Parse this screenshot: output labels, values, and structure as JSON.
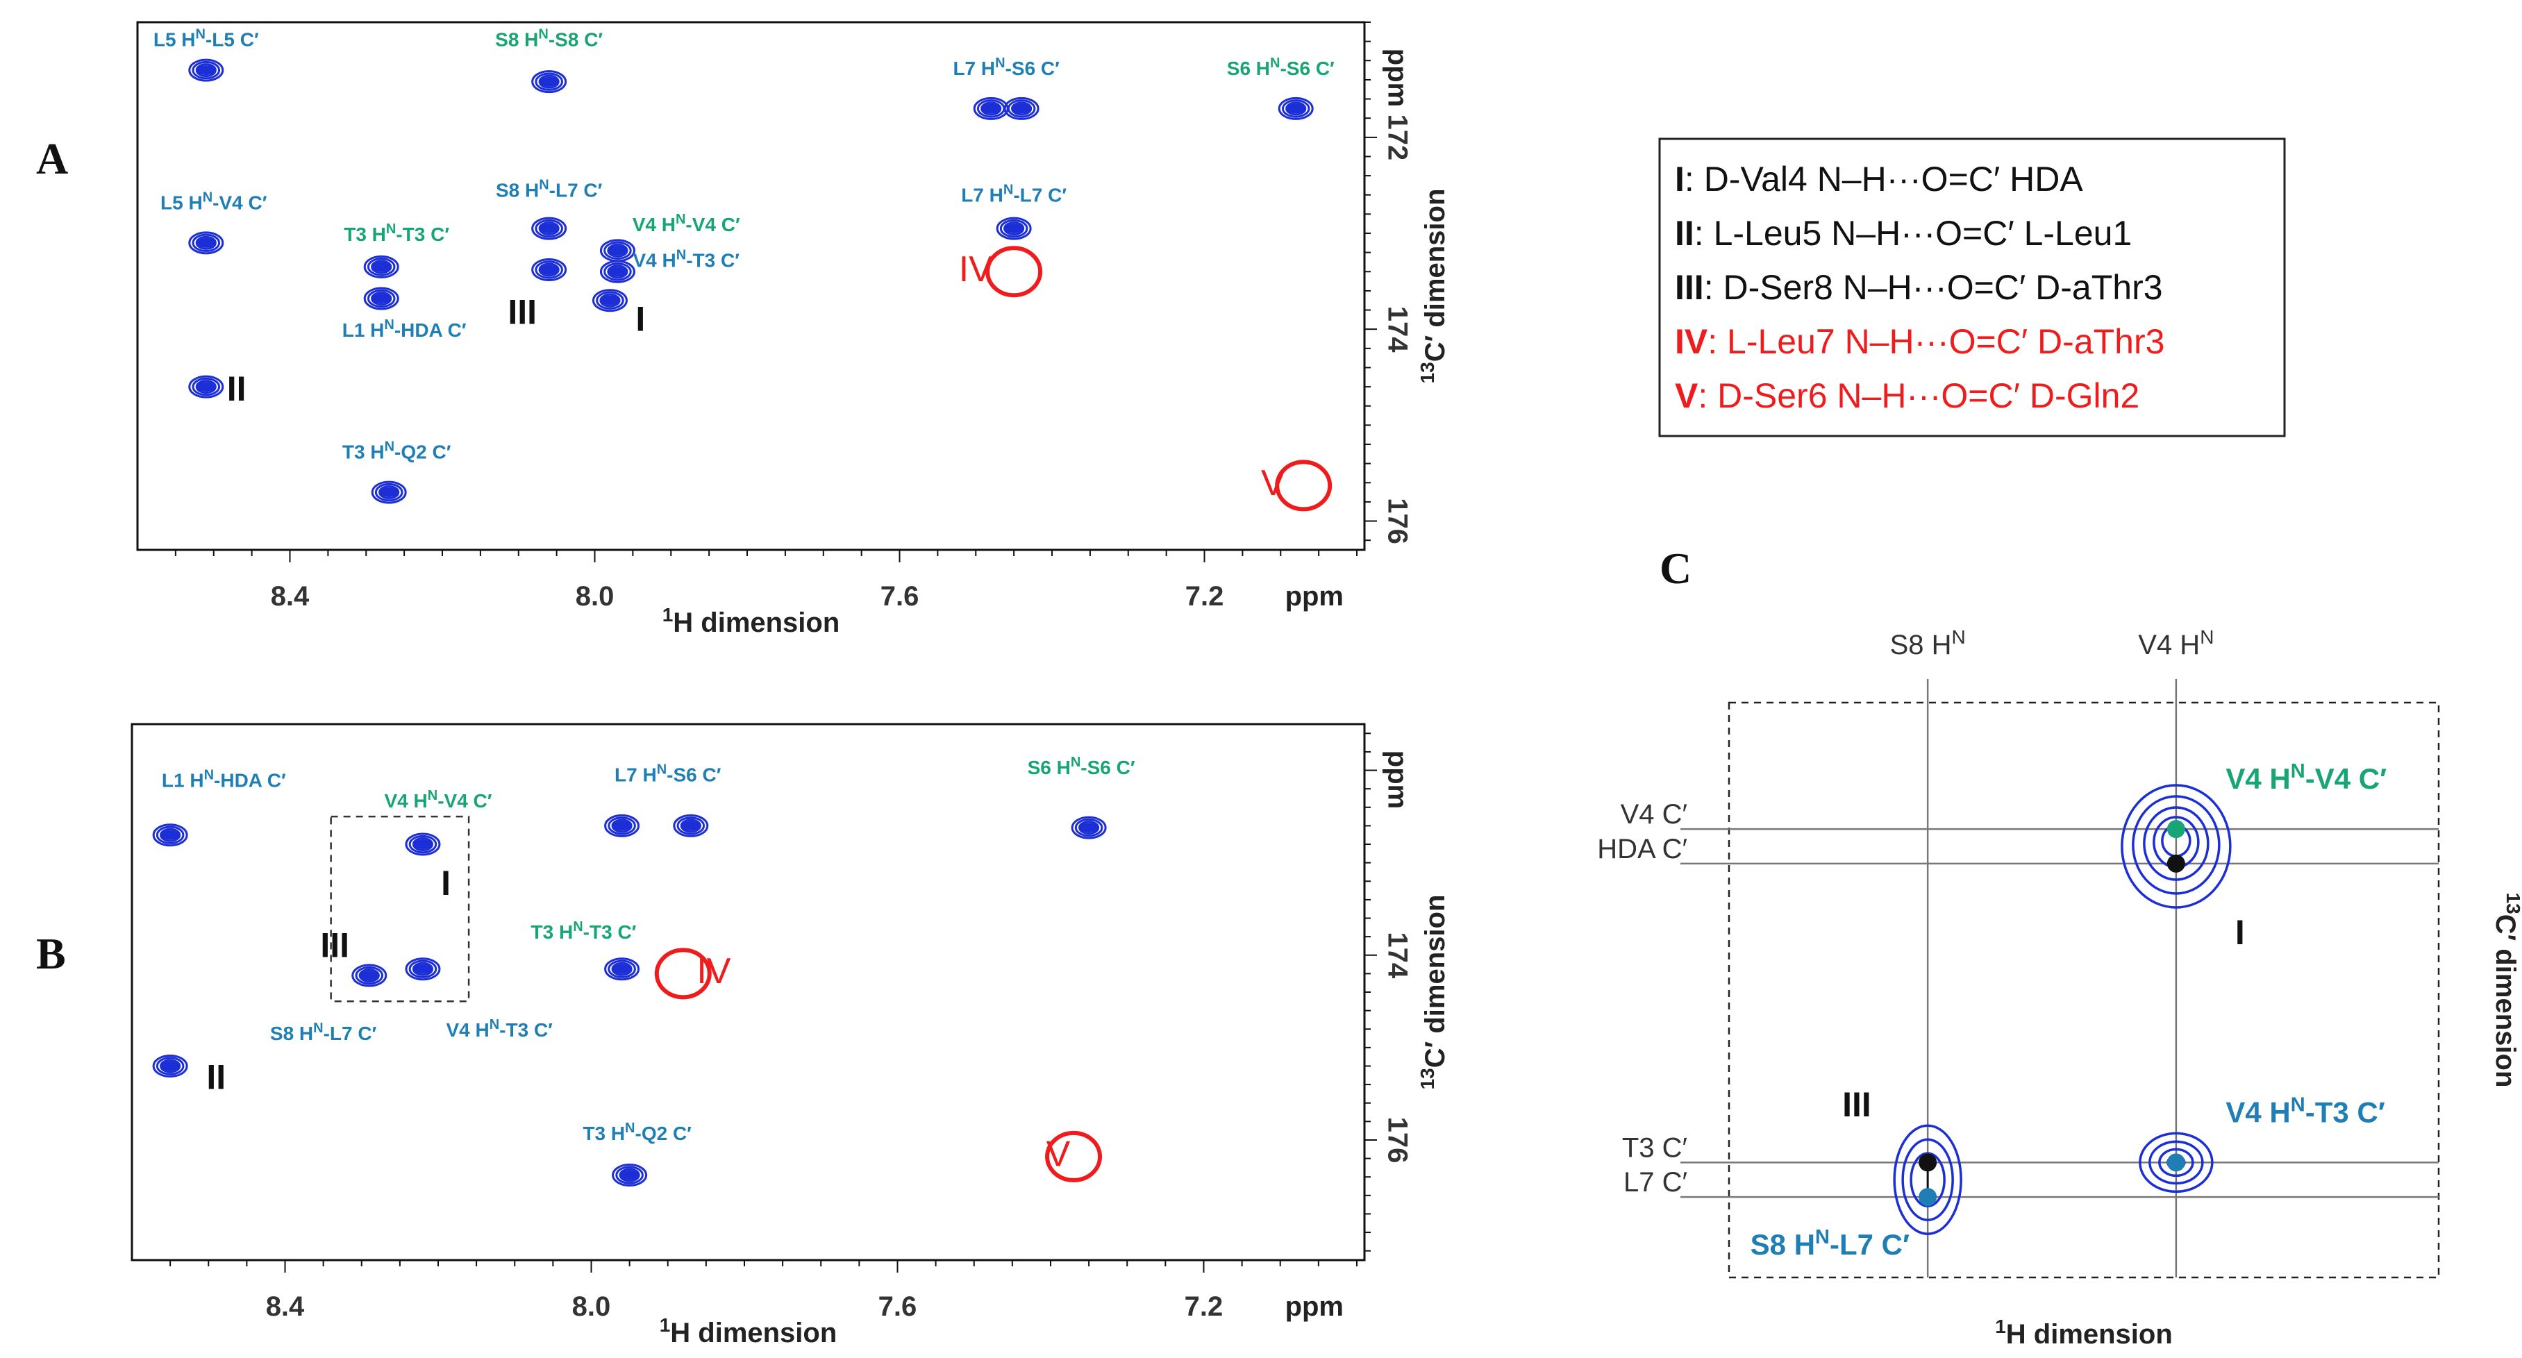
{
  "colors": {
    "blue": "#1c2fd6",
    "teal": "#1f7fb4",
    "green": "#17a673",
    "red": "#ee1c1c",
    "black": "#111111",
    "grid": "#777777"
  },
  "panel_labels": {
    "a": "A",
    "b": "B",
    "c": "C"
  },
  "chart_data": [
    {
      "id": "A",
      "type": "scatter",
      "xlabel_prefix": "1",
      "xlabel": "H dimension",
      "xunit": "ppm",
      "ylabel_prefix": "13",
      "ylabel": "C′ dimension",
      "yunit": "ppm",
      "xlim": [
        8.6,
        6.99
      ],
      "ylim": [
        170.8,
        176.3
      ],
      "x_ticks": [
        "8.4",
        "8.0",
        "7.6",
        "7.2"
      ],
      "x_tick_values": [
        8.4,
        8.0,
        7.6,
        7.2
      ],
      "y_ticks": [
        "172",
        "174",
        "176"
      ],
      "y_tick_values": [
        172,
        174,
        176
      ],
      "peaks": [
        {
          "x": 8.51,
          "y": 171.3
        },
        {
          "x": 8.06,
          "y": 171.42
        },
        {
          "x": 7.48,
          "y": 171.7
        },
        {
          "x": 7.44,
          "y": 171.7
        },
        {
          "x": 7.08,
          "y": 171.7
        },
        {
          "x": 8.51,
          "y": 173.1
        },
        {
          "x": 8.06,
          "y": 172.95
        },
        {
          "x": 8.06,
          "y": 173.38
        },
        {
          "x": 7.97,
          "y": 173.18
        },
        {
          "x": 7.97,
          "y": 173.4
        },
        {
          "x": 7.98,
          "y": 173.7
        },
        {
          "x": 8.28,
          "y": 173.35
        },
        {
          "x": 8.28,
          "y": 173.68
        },
        {
          "x": 7.45,
          "y": 172.95
        },
        {
          "x": 8.51,
          "y": 174.6
        },
        {
          "x": 8.27,
          "y": 175.7
        }
      ],
      "peak_labels": [
        {
          "text": "L5 H",
          "sup": "N",
          "rest": "-L5 C′",
          "color": "teal",
          "x": 8.51,
          "y": 171.05
        },
        {
          "text": "S8 H",
          "sup": "N",
          "rest": "-S8 C′",
          "color": "green",
          "x": 8.06,
          "y": 171.05
        },
        {
          "text": "L7 H",
          "sup": "N",
          "rest": "-S6 C′",
          "color": "teal",
          "x": 7.46,
          "y": 171.35
        },
        {
          "text": "S6 H",
          "sup": "N",
          "rest": "-S6 C′",
          "color": "green",
          "x": 7.1,
          "y": 171.35
        },
        {
          "text": "L5 H",
          "sup": "N",
          "rest": "-V4 C′",
          "color": "teal",
          "x": 8.5,
          "y": 172.75
        },
        {
          "text": "S8 H",
          "sup": "N",
          "rest": "-L7 C′",
          "color": "teal",
          "x": 8.06,
          "y": 172.62
        },
        {
          "text": "L7 H",
          "sup": "N",
          "rest": "-L7 C′",
          "color": "teal",
          "x": 7.45,
          "y": 172.67
        },
        {
          "text": "T3 H",
          "sup": "N",
          "rest": "-T3 C′",
          "color": "green",
          "x": 8.26,
          "y": 173.08
        },
        {
          "text": "V4 H",
          "sup": "N",
          "rest": "-V4 C′",
          "color": "green",
          "x": 7.88,
          "y": 172.98
        },
        {
          "text": "V4 H",
          "sup": "N",
          "rest": "-T3 C′",
          "color": "teal",
          "x": 7.88,
          "y": 173.35
        },
        {
          "text": "L1 H",
          "sup": "N",
          "rest": "-HDA C′",
          "color": "teal",
          "x": 8.25,
          "y": 174.08
        },
        {
          "text": "T3 H",
          "sup": "N",
          "rest": "-Q2 C′",
          "color": "teal",
          "x": 8.26,
          "y": 175.35
        }
      ],
      "hbond_markers": [
        {
          "text": "III",
          "color": "black",
          "x": 8.095,
          "y": 173.85
        },
        {
          "text": "I",
          "color": "black",
          "x": 7.94,
          "y": 173.92
        },
        {
          "text": "II",
          "color": "black",
          "x": 8.47,
          "y": 174.65
        },
        {
          "text": "IV",
          "color": "red",
          "x": 7.5,
          "y": 173.4
        },
        {
          "text": "V",
          "color": "red",
          "x": 7.11,
          "y": 175.63
        }
      ],
      "missing_peaks": [
        {
          "x": 7.45,
          "y": 173.4,
          "label": "IV"
        },
        {
          "x": 7.07,
          "y": 175.63,
          "label": "V"
        }
      ]
    },
    {
      "id": "B",
      "type": "scatter",
      "xlabel_prefix": "1",
      "xlabel": "H dimension",
      "xunit": "ppm",
      "ylabel_prefix": "13",
      "ylabel": "C′ dimension",
      "yunit": "ppm",
      "xlim": [
        8.6,
        6.99
      ],
      "ylim": [
        171.5,
        177.3
      ],
      "x_ticks": [
        "8.4",
        "8.0",
        "7.6",
        "7.2"
      ],
      "x_tick_values": [
        8.4,
        8.0,
        7.6,
        7.2
      ],
      "y_ticks": [
        "174",
        "176"
      ],
      "y_tick_values": [
        174,
        176
      ],
      "peaks": [
        {
          "x": 8.55,
          "y": 172.7
        },
        {
          "x": 8.22,
          "y": 172.8
        },
        {
          "x": 7.87,
          "y": 172.6
        },
        {
          "x": 7.96,
          "y": 172.6
        },
        {
          "x": 7.35,
          "y": 172.62
        },
        {
          "x": 8.29,
          "y": 174.22
        },
        {
          "x": 8.22,
          "y": 174.15
        },
        {
          "x": 7.96,
          "y": 174.15
        },
        {
          "x": 8.55,
          "y": 175.2
        },
        {
          "x": 7.95,
          "y": 176.38
        }
      ],
      "peak_labels": [
        {
          "text": "L1 H",
          "sup": "N",
          "rest": "-HDA C′",
          "color": "teal",
          "x": 8.48,
          "y": 172.18
        },
        {
          "text": "V4 H",
          "sup": "N",
          "rest": "-V4 C′",
          "color": "green",
          "x": 8.2,
          "y": 172.4
        },
        {
          "text": "L7 H",
          "sup": "N",
          "rest": "-S6 C′",
          "color": "teal",
          "x": 7.9,
          "y": 172.12
        },
        {
          "text": "S6 H",
          "sup": "N",
          "rest": "-S6 C′",
          "color": "green",
          "x": 7.36,
          "y": 172.04
        },
        {
          "text": "T3 H",
          "sup": "N",
          "rest": "-T3 C′",
          "color": "green",
          "x": 8.01,
          "y": 173.82
        },
        {
          "text": "S8 H",
          "sup": "N",
          "rest": "-L7 C′",
          "color": "teal",
          "x": 8.35,
          "y": 174.92
        },
        {
          "text": "V4 H",
          "sup": "N",
          "rest": "-T3 C′",
          "color": "teal",
          "x": 8.12,
          "y": 174.88
        },
        {
          "text": "T3 H",
          "sup": "N",
          "rest": "-Q2 C′",
          "color": "teal",
          "x": 7.94,
          "y": 176.0
        }
      ],
      "hbond_markers": [
        {
          "text": "I",
          "color": "black",
          "x": 8.19,
          "y": 173.25
        },
        {
          "text": "III",
          "color": "black",
          "x": 8.335,
          "y": 173.92
        },
        {
          "text": "II",
          "color": "black",
          "x": 8.49,
          "y": 175.35
        },
        {
          "text": "IV",
          "color": "red",
          "x": 7.84,
          "y": 174.2
        },
        {
          "text": "V",
          "color": "red",
          "x": 7.39,
          "y": 176.18
        }
      ],
      "missing_peaks": [
        {
          "x": 7.88,
          "y": 174.2,
          "label": "IV"
        },
        {
          "x": 7.37,
          "y": 176.18,
          "label": "V"
        }
      ],
      "zoom_box": {
        "x": [
          8.34,
          8.16
        ],
        "y": [
          172.5,
          174.5
        ]
      }
    },
    {
      "id": "C",
      "type": "scatter",
      "xlabel_prefix": "1",
      "xlabel": "H dimension",
      "ylabel_prefix": "13",
      "ylabel": "C′ dimension",
      "xlim": [
        0,
        100
      ],
      "ylim": [
        0,
        100
      ],
      "x_guides": [
        {
          "text": "S8 H",
          "sup": "N",
          "x": 28
        },
        {
          "text": "V4 H",
          "sup": "N",
          "x": 63
        }
      ],
      "y_guides": [
        {
          "text": "V4 C′",
          "y": 22
        },
        {
          "text": "HDA C′",
          "y": 28
        },
        {
          "text": "T3 C′",
          "y": 80
        },
        {
          "text": "L7 C′",
          "y": 86
        }
      ],
      "points": [
        {
          "x": 63,
          "y": 22,
          "color": "green"
        },
        {
          "x": 63,
          "y": 28,
          "color": "black"
        },
        {
          "x": 28,
          "y": 80,
          "color": "black"
        },
        {
          "x": 28,
          "y": 86,
          "color": "teal"
        },
        {
          "x": 63,
          "y": 80,
          "color": "teal"
        }
      ],
      "peak_labels": [
        {
          "text": "V4 H",
          "sup": "N",
          "rest": "-V4 C′",
          "color": "green",
          "x": 70,
          "y": 15
        },
        {
          "text": "V4 H",
          "sup": "N",
          "rest": "-T3 C′",
          "color": "teal",
          "x": 70,
          "y": 73
        },
        {
          "text": "S8 H",
          "sup": "N",
          "rest": "-L7 C′",
          "color": "teal",
          "x": 3,
          "y": 96
        }
      ],
      "hbond_markers": [
        {
          "text": "I",
          "color": "black",
          "x": 72,
          "y": 42
        },
        {
          "text": "III",
          "color": "black",
          "x": 18,
          "y": 72
        }
      ]
    }
  ],
  "legend": {
    "items": [
      {
        "numeral": "I",
        "text": ": D-Val4 N–H···O=C′ HDA",
        "color": "black"
      },
      {
        "numeral": "II",
        "text": ": L-Leu5 N–H···O=C′ L-Leu1",
        "color": "black"
      },
      {
        "numeral": "III",
        "text": ":  D-Ser8 N–H···O=C′ D-aThr3",
        "color": "black"
      },
      {
        "numeral": "IV",
        "text": ": L-Leu7 N–H···O=C′ D-aThr3",
        "color": "red"
      },
      {
        "numeral": "V",
        "text": ": D-Ser6 N–H···O=C′ D-Gln2",
        "color": "red"
      }
    ]
  }
}
